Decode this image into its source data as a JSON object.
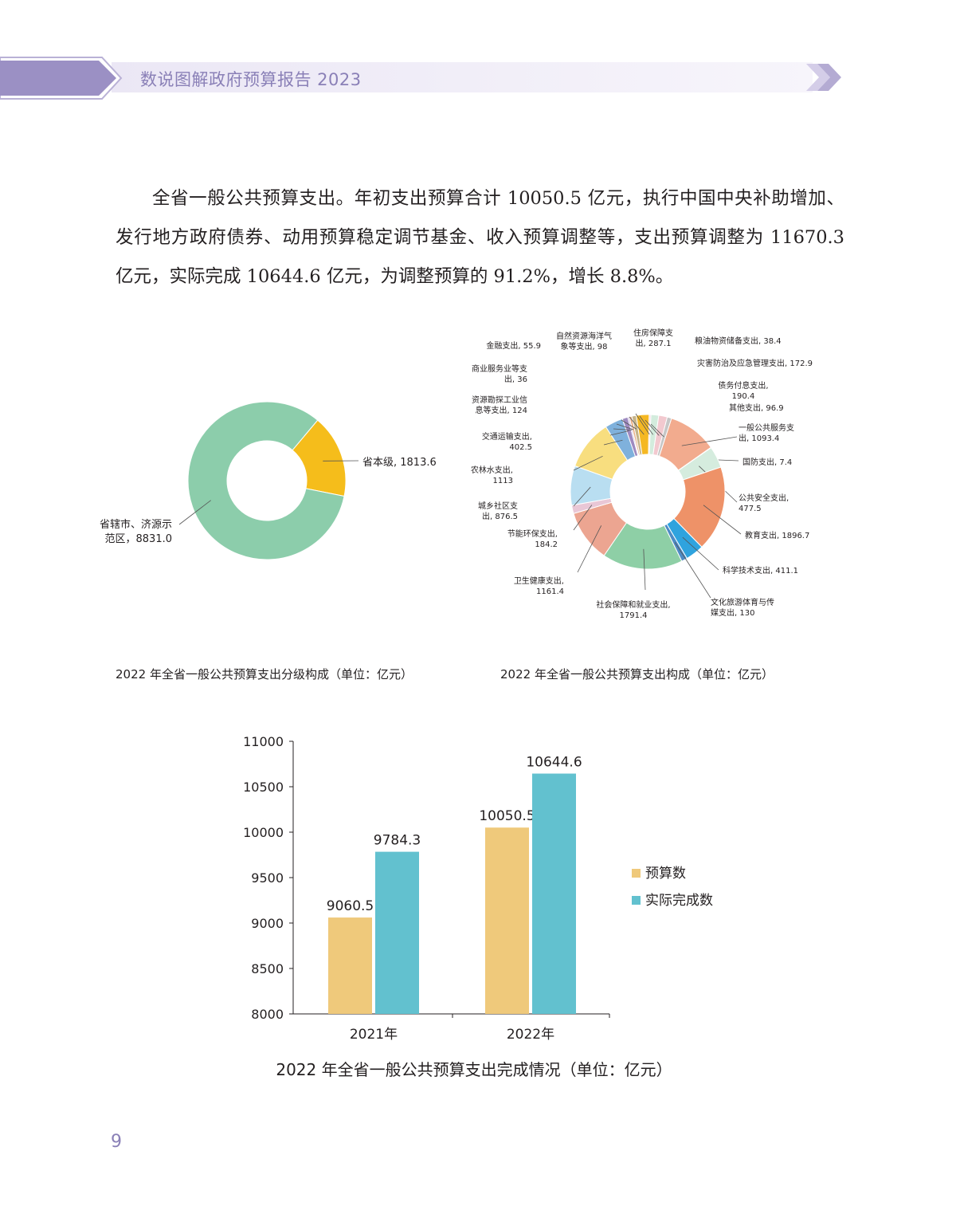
{
  "header": {
    "title": "数说图解政府预算报告 2023"
  },
  "intro": {
    "text": "全省一般公共预算支出。年初支出预算合计 10050.5 亿元，执行中国中央补助增加、发行地方政府债券、动用预算稳定调节基金、收入预算调整等，支出预算调整为 11670.3 亿元，实际完成 10644.6 亿元，为调整预算的 91.2%，增长 8.8%。"
  },
  "captions": {
    "left": "2022 年全省一般公共预算支出分级构成（单位：亿元）",
    "right": "2022 年全省一般公共预算支出构成（单位：亿元）",
    "bottom": "2022 年全省一般公共预算支出完成情况（单位：亿元）"
  },
  "page_number": "9",
  "colors": {
    "header_purple": "#8a80b7",
    "budget": "#efc97b",
    "actual": "#62c1cf"
  },
  "chart_data": [
    {
      "type": "pie",
      "subtype": "donut",
      "slices": [
        {
          "label": [
            "省本级, 1813.6"
          ],
          "value": 1813.6,
          "color": "#f5bd1b"
        },
        {
          "label": [
            "省辖市、济源示",
            "范区，8831.0"
          ],
          "value": 8831.0,
          "color": "#8ccdab"
        }
      ]
    },
    {
      "type": "pie",
      "subtype": "donut",
      "slices": [
        {
          "label": [
            "一般公共服务支",
            "出, 1093.4"
          ],
          "value": 1093.4,
          "color": "#f2ab8e"
        },
        {
          "label": [
            "国防支出, 7.4"
          ],
          "value": 7.4,
          "color": "#cfe9d9"
        },
        {
          "label": [
            "公共安全支出,",
            "477.5"
          ],
          "value": 477.5,
          "color": "#d5ecde"
        },
        {
          "label": [
            "教育支出, 1896.7"
          ],
          "value": 1896.7,
          "color": "#ee9268"
        },
        {
          "label": [
            "科学技术支出, 411.1"
          ],
          "value": 411.1,
          "color": "#2fa3de"
        },
        {
          "label": [
            "文化旅游体育与传",
            "媒支出, 130"
          ],
          "value": 130,
          "color": "#4e8bc4"
        },
        {
          "label": [
            "社会保障和就业支出,",
            "1791.4"
          ],
          "value": 1791.4,
          "color": "#8ecfa6"
        },
        {
          "label": [
            "卫生健康支出,",
            "1161.4"
          ],
          "value": 1161.4,
          "color": "#eca591"
        },
        {
          "label": [
            "节能环保支出,",
            "184.2"
          ],
          "value": 184.2,
          "color": "#e9c7d6"
        },
        {
          "label": [
            "城乡社区支",
            "出, 876.5"
          ],
          "value": 876.5,
          "color": "#b9def1"
        },
        {
          "label": [
            "农林水支出,",
            "1113"
          ],
          "value": 1113,
          "color": "#f8de7f"
        },
        {
          "label": [
            "交通运输支出,",
            "402.5"
          ],
          "value": 402.5,
          "color": "#7fb1dc"
        },
        {
          "label": [
            "资源勘探工业信",
            "息等支出, 124"
          ],
          "value": 124,
          "color": "#9e8ac0"
        },
        {
          "label": [
            "商业服务业等支",
            "出, 36"
          ],
          "value": 36,
          "color": "#c9b6d8"
        },
        {
          "label": [
            "金融支出, 55.9"
          ],
          "value": 55.9,
          "color": "#e8ac80"
        },
        {
          "label": [
            "自然资源海洋气",
            "象等支出, 98"
          ],
          "value": 98,
          "color": "#c5b48a"
        },
        {
          "label": [
            "住房保障支",
            "出, 287.1"
          ],
          "value": 287.1,
          "color": "#f5b823"
        },
        {
          "label": [
            "粮油物资储备支出, 38.4"
          ],
          "value": 38.4,
          "color": "#f4d7e3"
        },
        {
          "label": [
            "灾害防治及应急管理支出, 172.9"
          ],
          "value": 172.9,
          "color": "#d3ecdd"
        },
        {
          "label": [
            "债务付息支出,",
            "190.4"
          ],
          "value": 190.4,
          "color": "#f2c9cf"
        },
        {
          "label": [
            "其他支出, 96.9"
          ],
          "value": 96.9,
          "color": "#c6c6c6"
        }
      ]
    },
    {
      "type": "bar",
      "categories": [
        "2021年",
        "2022年"
      ],
      "series": [
        {
          "name": "预算数",
          "values": [
            9060.5,
            10050.5
          ]
        },
        {
          "name": "实际完成数",
          "values": [
            9784.3,
            10644.6
          ]
        }
      ],
      "ylim": [
        8000,
        11000
      ],
      "yticks": [
        8000,
        8500,
        9000,
        9500,
        10000,
        10500,
        11000
      ],
      "value_labels": [
        "9060.5",
        "10050.5",
        "9784.3",
        "10644.6"
      ],
      "legend_position": "right"
    }
  ]
}
